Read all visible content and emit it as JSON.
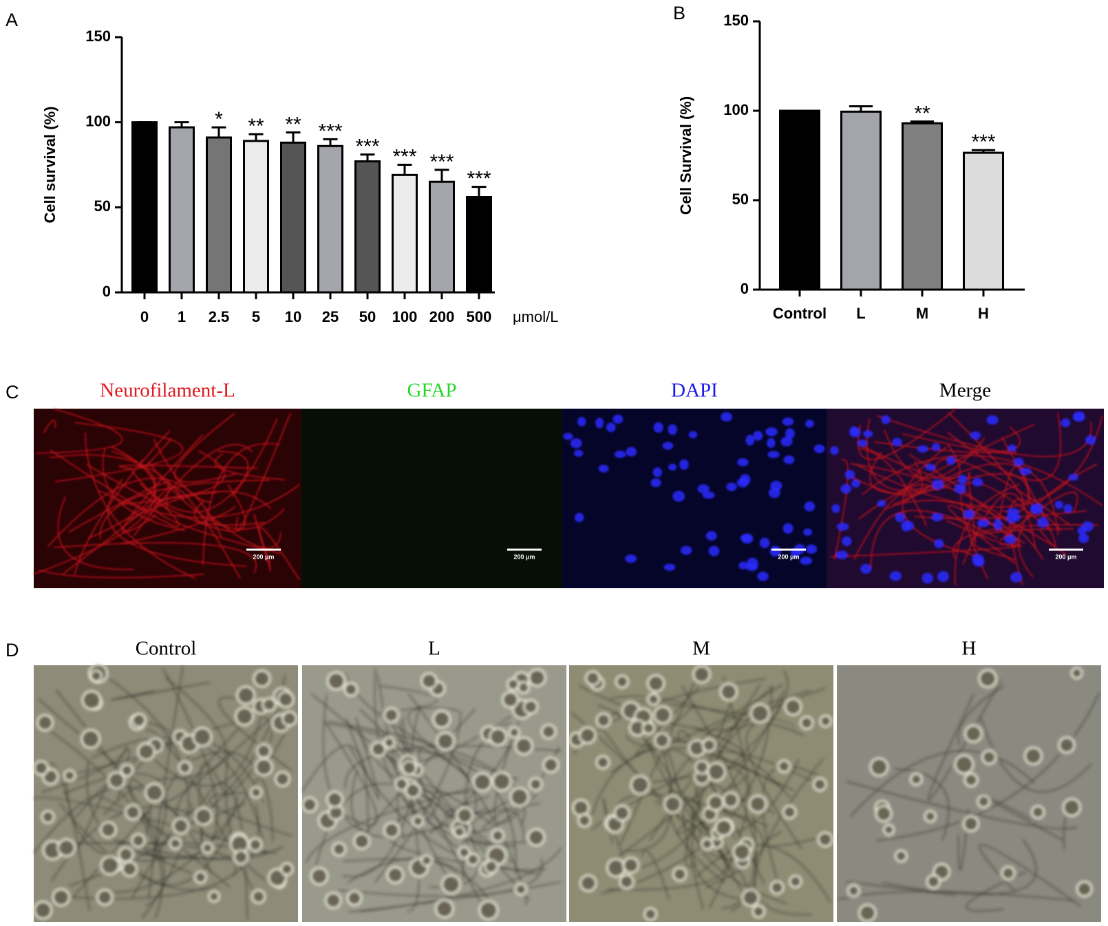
{
  "chart_data": [
    {
      "type": "bar",
      "panel_label": "A",
      "ylabel": "Cell survival (%)",
      "unit_label": "μmol/L",
      "categories": [
        "0",
        "1",
        "2.5",
        "5",
        "10",
        "25",
        "50",
        "100",
        "200",
        "500"
      ],
      "values": [
        100,
        97,
        91,
        89,
        88,
        86,
        77,
        69,
        65,
        56
      ],
      "errors": [
        0,
        3,
        6,
        4,
        6,
        4,
        4,
        6,
        7,
        6
      ],
      "annotations": [
        null,
        null,
        "*",
        "**",
        "**",
        "***",
        "***",
        "***",
        "***",
        "***"
      ],
      "colors": [
        "#000000",
        "#a4a4ac",
        "#757575",
        "#ececec",
        "#555555",
        "#a4a4ac",
        "#555555",
        "#ececec",
        "#a4a4ac",
        "#000000"
      ],
      "ylim": [
        0,
        150
      ],
      "yticks": [
        0,
        50,
        100,
        150
      ]
    },
    {
      "type": "bar",
      "panel_label": "B",
      "ylabel": "Cell Survival (%)",
      "categories": [
        "Control",
        "L",
        "M",
        "H"
      ],
      "values": [
        100,
        99.5,
        93,
        76.5
      ],
      "errors": [
        0,
        3,
        1,
        1.5
      ],
      "annotations": [
        null,
        null,
        "**",
        "***"
      ],
      "colors": [
        "#000000",
        "#a4a4ac",
        "#808080",
        "#dcdcdc"
      ],
      "ylim": [
        0,
        150
      ],
      "yticks": [
        0,
        50,
        100,
        150
      ]
    }
  ],
  "panel_c": {
    "label": "C",
    "channels": [
      {
        "title": "Neurofilament-L",
        "color": "#e0191f",
        "scale_bar": "200 μm"
      },
      {
        "title": "GFAP",
        "color": "#2ad42a",
        "scale_bar": "200 μm"
      },
      {
        "title": "DAPI",
        "color": "#1a1aee",
        "scale_bar": "200 μm"
      },
      {
        "title": "Merge",
        "color": "#000000",
        "scale_bar": "200 μm"
      }
    ]
  },
  "panel_d": {
    "label": "D",
    "conditions": [
      "Control",
      "L",
      "M",
      "H"
    ]
  }
}
